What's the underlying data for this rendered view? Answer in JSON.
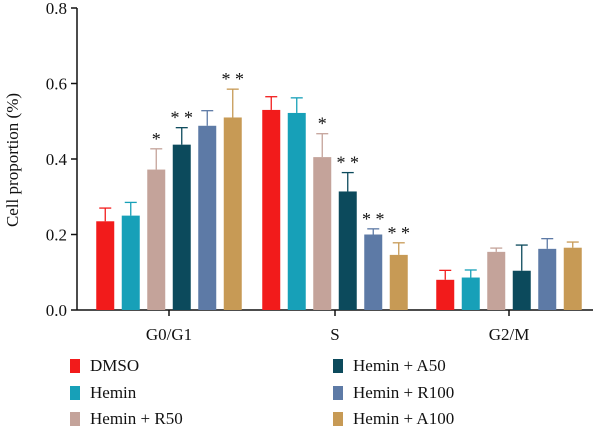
{
  "chart_data": {
    "type": "bar",
    "ylabel": "Cell proportion (%)",
    "ylim": [
      0,
      0.8
    ],
    "yticks": [
      "0.0",
      "0.2",
      "0.4",
      "0.6",
      "0.8"
    ],
    "categories": [
      "G0/G1",
      "S",
      "G2/M"
    ],
    "series": [
      {
        "name": "DMSO",
        "color": "#f21b1b",
        "values": [
          0.235,
          0.53,
          0.08
        ],
        "errors": [
          0.035,
          0.035,
          0.025
        ],
        "sig": [
          "",
          "",
          ""
        ]
      },
      {
        "name": "Hemin",
        "color": "#17a0b8",
        "values": [
          0.25,
          0.522,
          0.086
        ],
        "errors": [
          0.035,
          0.04,
          0.02
        ],
        "sig": [
          "",
          "",
          ""
        ]
      },
      {
        "name": "Hemin + R50",
        "color": "#c4a39a",
        "values": [
          0.372,
          0.405,
          0.154
        ],
        "errors": [
          0.055,
          0.062,
          0.01
        ],
        "sig": [
          "*",
          "*",
          ""
        ]
      },
      {
        "name": "Hemin + A50",
        "color": "#0c4a5c",
        "values": [
          0.438,
          0.314,
          0.104
        ],
        "errors": [
          0.045,
          0.05,
          0.068
        ],
        "sig": [
          "* *",
          "* *",
          ""
        ]
      },
      {
        "name": "Hemin + R100",
        "color": "#5d7aa6",
        "values": [
          0.488,
          0.2,
          0.162
        ],
        "errors": [
          0.04,
          0.015,
          0.027
        ],
        "sig": [
          "",
          "* *",
          ""
        ]
      },
      {
        "name": "Hemin + A100",
        "color": "#c79a55",
        "values": [
          0.51,
          0.146,
          0.165
        ],
        "errors": [
          0.075,
          0.032,
          0.015
        ],
        "sig": [
          "* *",
          "* *",
          ""
        ]
      }
    ]
  }
}
